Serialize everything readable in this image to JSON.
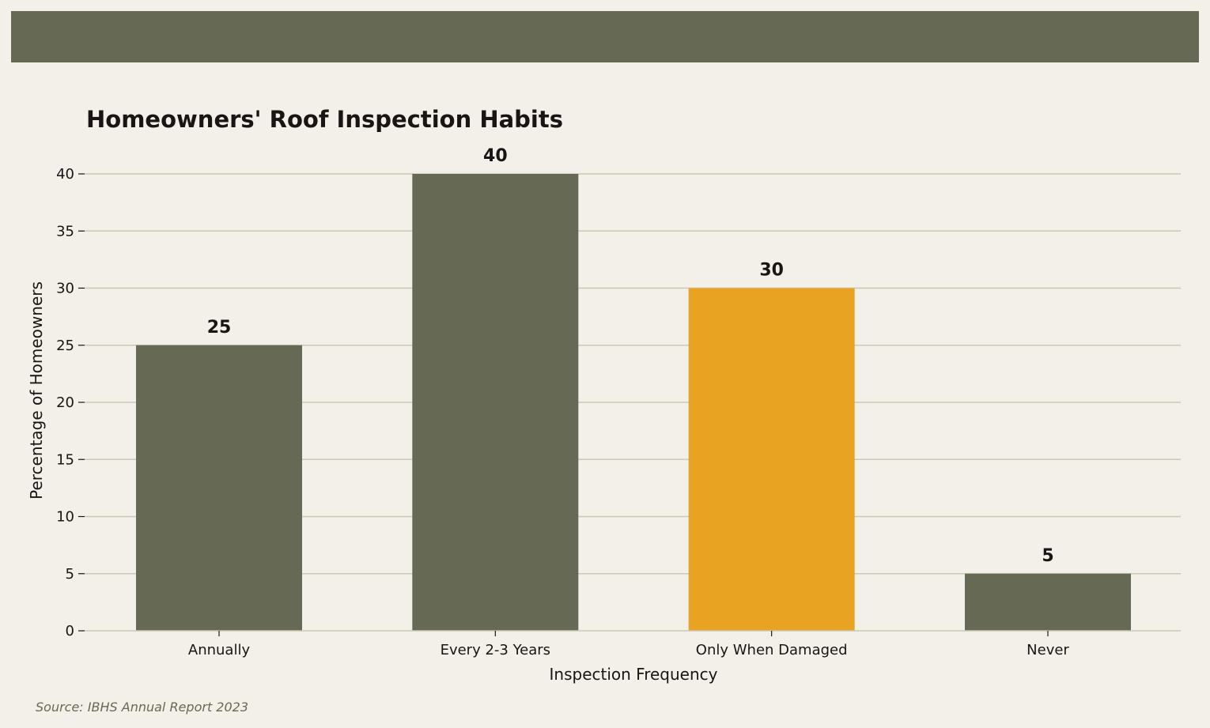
{
  "chart_data": {
    "type": "bar",
    "title": "Homeowners' Roof Inspection Habits",
    "xlabel": "Inspection Frequency",
    "ylabel": "Percentage of Homeowners",
    "categories": [
      "Annually",
      "Every 2-3 Years",
      "Only When Damaged",
      "Never"
    ],
    "values": [
      25,
      40,
      30,
      5
    ],
    "data_labels": [
      "25",
      "40",
      "30",
      "5"
    ],
    "ylim": [
      0,
      40
    ],
    "yticks": [
      0,
      5,
      10,
      15,
      20,
      25,
      30,
      35,
      40
    ],
    "ytick_labels": [
      "0",
      "5",
      "10",
      "15",
      "20",
      "25",
      "30",
      "35",
      "40"
    ],
    "highlight_index": 2,
    "grid": "horizontal",
    "legend": "none"
  },
  "source": "Source: IBHS Annual Report 2023",
  "colors": {
    "background": "#f2f0e9",
    "bar": "#666a54",
    "highlight": "#e8a323",
    "grid": "#ccc8b4",
    "text": "#1a1414",
    "source_text": "#666a54"
  }
}
